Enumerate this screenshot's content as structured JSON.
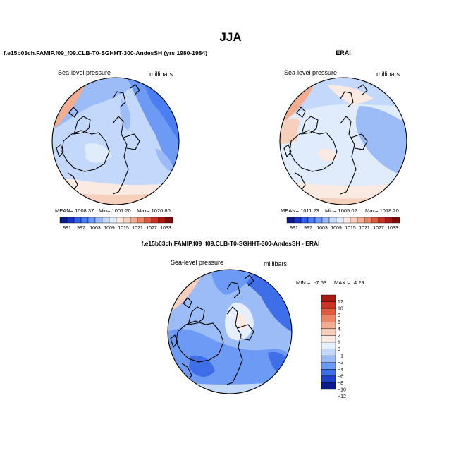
{
  "figure": {
    "main_title": "JJA",
    "colors": {
      "palette": [
        "#0a1a8c",
        "#1733c7",
        "#2e5fe6",
        "#4a7ef2",
        "#6d9af5",
        "#9bbcf7",
        "#c3d8fa",
        "#e0ebfc",
        "#fbeae2",
        "#f7d0bd",
        "#f2ac8f",
        "#eb8565",
        "#e05a3c",
        "#cd3121",
        "#a81a12",
        "#7a0d0a"
      ],
      "diff_palette": [
        "#0a1a8c",
        "#1f3fd0",
        "#3f6fe8",
        "#6d9af5",
        "#9bbcf7",
        "#c3d8fa",
        "#e6effd",
        "#fbeae2",
        "#f7d0bd",
        "#f2ac8f",
        "#eb8565",
        "#e05a3c",
        "#cd3121",
        "#a81a12"
      ]
    }
  },
  "chart_data": [
    {
      "type": "heatmap",
      "panel": "model",
      "title": "f.e15b03ch.FAMIP.f09_f09.CLB-T0-SGHHT-300-AndesSH (yrs 1980-1984)",
      "variable": "Sea-level pressure",
      "units": "millibars",
      "projection": "north polar stereographic",
      "stats": {
        "mean": "MEAN= 1008.37",
        "min": "Min= 1001.20",
        "max": "Max= 1020.80"
      },
      "colorbar_labels": [
        "991",
        "997",
        "1003",
        "1009",
        "1015",
        "1021",
        "1027",
        "1033"
      ]
    },
    {
      "type": "heatmap",
      "panel": "obs",
      "title": "ERAI",
      "variable": "Sea-level pressure",
      "units": "millibars",
      "projection": "north polar stereographic",
      "stats": {
        "mean": "MEAN= 1011.23",
        "min": "Min= 1005.02",
        "max": "Max= 1018.20"
      },
      "colorbar_labels": [
        "991",
        "997",
        "1003",
        "1009",
        "1015",
        "1021",
        "1027",
        "1033"
      ]
    },
    {
      "type": "heatmap",
      "panel": "difference",
      "title": "f.e15b03ch.FAMIP.f09_f09.CLB-T0-SGHHT-300-AndesSH - ERAI",
      "variable": "Sea-level pressure",
      "units": "millibars",
      "projection": "north polar stereographic",
      "stats": {
        "min_label": "MIN =",
        "min": "-7.53",
        "max_label": "MAX =",
        "max": "4.29"
      },
      "colorbar_labels": [
        "12",
        "10",
        "8",
        "6",
        "4",
        "2",
        "1",
        "0",
        "−1",
        "−2",
        "−4",
        "−6",
        "−8",
        "−10",
        "−12"
      ]
    }
  ]
}
